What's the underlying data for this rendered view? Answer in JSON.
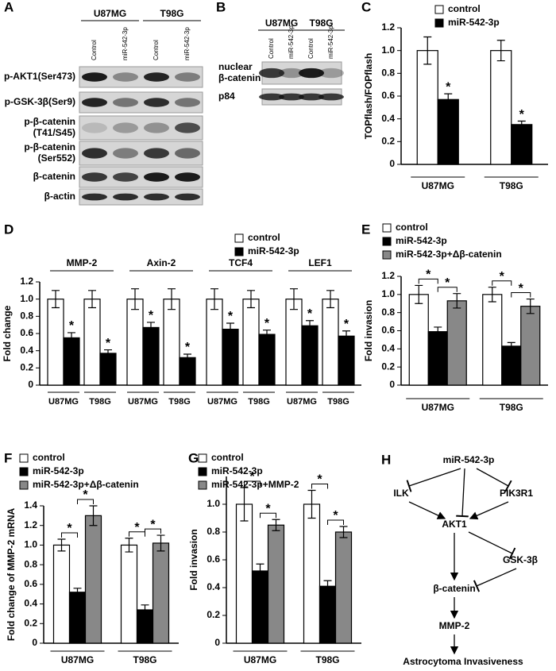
{
  "blots": [
    {
      "panel": "A",
      "cell_lines": [
        "U87MG",
        "T98G"
      ],
      "lanes": [
        "Control",
        "miR-542-3p",
        "Control",
        "miR-542-3p"
      ],
      "rows": [
        "p-AKT1(Ser473)",
        "p-GSK-3β(Ser9)",
        [
          "p-β-catenin",
          "(T41/S45)"
        ],
        [
          "p-β-catenin",
          "(Ser552)"
        ],
        "β-catenin",
        "β-actin"
      ]
    },
    {
      "panel": "B",
      "cell_lines": [
        "U87MG",
        "T98G"
      ],
      "lanes": [
        "Control",
        "miR-542-3p",
        "Control",
        "miR-542-3p"
      ],
      "rows": [
        [
          "nuclear",
          "β-catenin"
        ],
        "p84"
      ]
    }
  ],
  "chart_data": [
    {
      "type": "bar",
      "panel": "C",
      "y_label": "TOPflash/FOPflash",
      "categories": [
        "U87MG",
        "T98G"
      ],
      "series": [
        {
          "name": "control",
          "color": "#ffffff",
          "values": [
            1.0,
            1.0
          ],
          "errors": [
            0.12,
            0.09
          ]
        },
        {
          "name": "miR-542-3p",
          "color": "#000000",
          "values": [
            0.57,
            0.35
          ],
          "errors": [
            0.05,
            0.03
          ],
          "significance": [
            "*",
            "*"
          ]
        }
      ],
      "ylim": [
        0,
        1.2
      ],
      "yticks": [
        0,
        0.2,
        0.4,
        0.6,
        0.8,
        {
          "value": 1,
          "label": "1.0"
        },
        1.2
      ],
      "brackets": false
    },
    {
      "type": "bar",
      "panel": "D",
      "y_label": "Fold change",
      "groups": [
        "MMP-2",
        "Axin-2",
        "TCF4",
        "LEF1"
      ],
      "categories": [
        "U87MG",
        "T98G",
        "U87MG",
        "T98G",
        "U87MG",
        "T98G",
        "U87MG",
        "T98G"
      ],
      "series": [
        {
          "name": "control",
          "color": "#ffffff",
          "values": [
            1.0,
            1.0,
            1.0,
            1.0,
            1.0,
            1.0,
            1.0,
            1.0
          ],
          "errors": [
            0.1,
            0.1,
            0.12,
            0.12,
            0.12,
            0.1,
            0.12,
            0.1
          ]
        },
        {
          "name": "miR-542-3p",
          "color": "#000000",
          "values": [
            0.55,
            0.37,
            0.67,
            0.32,
            0.65,
            0.59,
            0.69,
            0.57
          ],
          "errors": [
            0.06,
            0.04,
            0.06,
            0.04,
            0.07,
            0.05,
            0.06,
            0.06
          ],
          "significance": [
            "*",
            "*",
            "*",
            "*",
            "*",
            "*",
            "*",
            "*"
          ]
        }
      ],
      "ylim": [
        0,
        1.2
      ],
      "yticks": [
        0,
        0.2,
        0.4,
        0.6,
        0.8,
        {
          "value": 1,
          "label": "1.0"
        },
        1.2
      ],
      "brackets": false
    },
    {
      "type": "bar",
      "panel": "E",
      "y_label": "Fold invasion",
      "categories": [
        "U87MG",
        "T98G"
      ],
      "series": [
        {
          "name": "control",
          "color": "#ffffff",
          "values": [
            1.0,
            1.0
          ],
          "errors": [
            0.1,
            0.08
          ]
        },
        {
          "name": "miR-542-3p",
          "color": "#000000",
          "values": [
            0.59,
            0.43
          ],
          "errors": [
            0.05,
            0.04
          ],
          "significance": [
            "*",
            "*"
          ]
        },
        {
          "name": "miR-542-3p+Δβ-catenin",
          "color": "#888888",
          "values": [
            0.93,
            0.87
          ],
          "errors": [
            0.08,
            0.08
          ],
          "significance": [
            "*",
            "*"
          ]
        }
      ],
      "ylim": [
        0,
        1.2
      ],
      "yticks": [
        0,
        0.2,
        0.4,
        0.6,
        0.8,
        {
          "value": 1,
          "label": "1.0"
        },
        1.2
      ],
      "brackets": true
    },
    {
      "type": "bar",
      "panel": "F",
      "y_label": "Fold change of MMP-2 mRNA",
      "categories": [
        "U87MG",
        "T98G"
      ],
      "series": [
        {
          "name": "control",
          "color": "#ffffff",
          "values": [
            1.0,
            1.0
          ],
          "errors": [
            0.06,
            0.07
          ]
        },
        {
          "name": "miR-542-3p",
          "color": "#000000",
          "values": [
            0.52,
            0.34
          ],
          "errors": [
            0.04,
            0.05
          ],
          "significance": [
            "*",
            "*"
          ]
        },
        {
          "name": "miR-542-3p+Δβ-catenin",
          "color": "#888888",
          "values": [
            1.3,
            1.02
          ],
          "errors": [
            0.1,
            0.08
          ],
          "significance": [
            "*",
            "*"
          ]
        }
      ],
      "ylim": [
        0,
        1.4
      ],
      "yticks": [
        0,
        0.2,
        0.4,
        0.6,
        0.8,
        {
          "value": 1,
          "label": "1.0"
        },
        1.2,
        1.4
      ],
      "brackets": true
    },
    {
      "type": "bar",
      "panel": "G",
      "y_label": "Fold invasion",
      "categories": [
        "U87MG",
        "T98G"
      ],
      "series": [
        {
          "name": "control",
          "color": "#ffffff",
          "values": [
            1.0,
            1.0
          ],
          "errors": [
            0.12,
            0.1
          ]
        },
        {
          "name": "miR-542-3p",
          "color": "#000000",
          "values": [
            0.52,
            0.41
          ],
          "errors": [
            0.05,
            0.04
          ],
          "significance": [
            "*",
            "*"
          ]
        },
        {
          "name": "miR-542-3p+MMP-2",
          "color": "#888888",
          "values": [
            0.85,
            0.8
          ],
          "errors": [
            0.04,
            0.04
          ],
          "significance": [
            "*",
            "*"
          ]
        }
      ],
      "ylim": [
        0,
        1.2
      ],
      "yticks": [
        0,
        0.2,
        0.4,
        0.6,
        0.8,
        {
          "value": 1,
          "label": "1.0"
        }
      ],
      "brackets": true
    }
  ],
  "pathway": {
    "panel": "H",
    "nodes": [
      "miR-542-3p",
      "ILK",
      "PIK3R1",
      "AKT1",
      "GSK-3β",
      "β-catenin",
      "MMP-2",
      "Astrocytoma Invasiveness"
    ]
  }
}
